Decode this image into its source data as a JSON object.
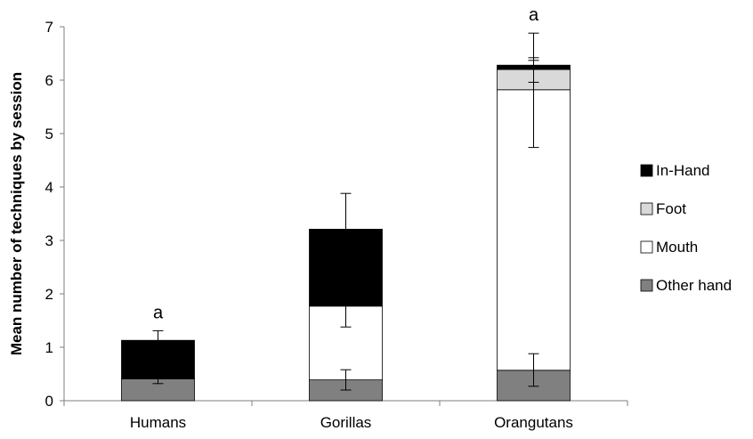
{
  "chart_data": {
    "type": "bar",
    "stacked": true,
    "title": "",
    "xlabel": "",
    "ylabel": "Mean number of techniques  by session",
    "ylim": [
      0,
      7
    ],
    "yticks": [
      "0",
      "1",
      "2",
      "3",
      "4",
      "5",
      "6",
      "7"
    ],
    "categories": [
      "Humans",
      "Gorillas",
      "Orangutans"
    ],
    "series": [
      {
        "name": "Other hand",
        "color": "#808080",
        "values": [
          0.41,
          0.39,
          0.57
        ]
      },
      {
        "name": "Mouth",
        "color": "#ffffff",
        "values": [
          0.0,
          1.38,
          5.25
        ]
      },
      {
        "name": "Foot",
        "color": "#d9d9d9",
        "values": [
          0.0,
          0.0,
          0.38
        ]
      },
      {
        "name": "In-Hand",
        "color": "#000000",
        "values": [
          0.72,
          1.44,
          0.08
        ]
      }
    ],
    "error_bars": [
      {
        "category": "Humans",
        "series": "Other hand",
        "y": 0.41,
        "low": 0.32,
        "high": 0.41
      },
      {
        "category": "Humans",
        "series": "In-Hand",
        "y": 1.13,
        "low": 1.13,
        "high": 1.31
      },
      {
        "category": "Gorillas",
        "series": "Other hand",
        "y": 0.39,
        "low": 0.2,
        "high": 0.58
      },
      {
        "category": "Gorillas",
        "series": "Mouth",
        "y": 1.77,
        "low": 1.38,
        "high": 1.77
      },
      {
        "category": "Gorillas",
        "series": "In-Hand",
        "y": 3.21,
        "low": 3.21,
        "high": 3.88
      },
      {
        "category": "Orangutans",
        "series": "Other hand",
        "y": 0.57,
        "low": 0.27,
        "high": 0.88
      },
      {
        "category": "Orangutans",
        "series": "Mouth",
        "y": 5.82,
        "low": 4.74,
        "high": 6.42
      },
      {
        "category": "Orangutans",
        "series": "Foot",
        "y": 6.2,
        "low": 5.96,
        "high": 6.37
      },
      {
        "category": "Orangutans",
        "series": "In-Hand",
        "y": 6.28,
        "low": 6.28,
        "high": 6.88
      }
    ],
    "annotations": [
      {
        "category": "Humans",
        "text": "a",
        "y": 1.31
      },
      {
        "category": "Orangutans",
        "text": "a",
        "y": 6.88
      }
    ],
    "legend": {
      "position": "right",
      "order": [
        "In-Hand",
        "Foot",
        "Mouth",
        "Other hand"
      ]
    },
    "grid": false
  }
}
